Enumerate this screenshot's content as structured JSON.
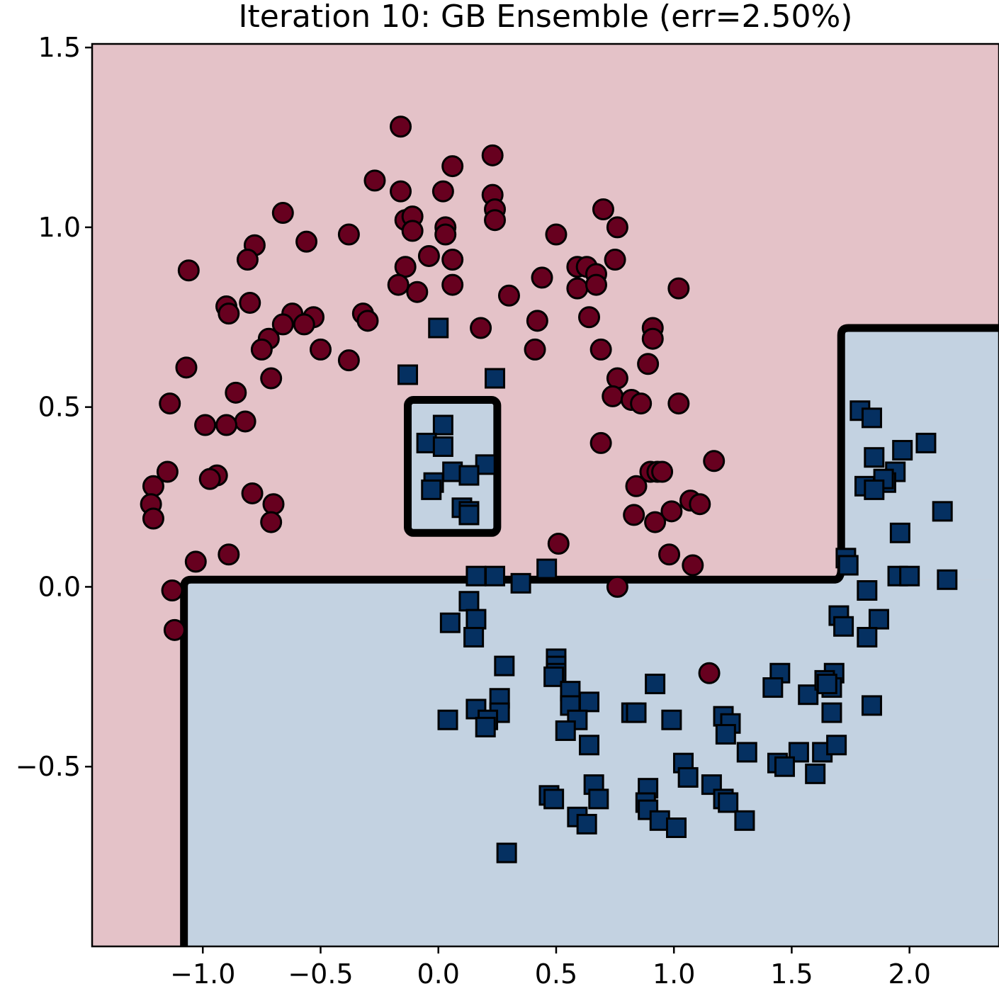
{
  "chart_data": {
    "type": "scatter",
    "title": "Iteration 10: GB Ensemble (err=2.50%)",
    "xlabel": "",
    "ylabel": "",
    "xlim": [
      -1.47,
      2.38
    ],
    "ylim": [
      -1.0,
      1.51
    ],
    "x_ticks": [
      -1.0,
      -0.5,
      0.0,
      0.5,
      1.0,
      1.5,
      2.0
    ],
    "x_tick_labels": [
      "−1.0",
      "−0.5",
      "0.0",
      "0.5",
      "1.0",
      "1.5",
      "2.0"
    ],
    "y_ticks": [
      -0.5,
      0.0,
      0.5,
      1.0,
      1.5
    ],
    "y_tick_labels": [
      "−0.5",
      "0.0",
      "0.5",
      "1.0",
      "1.5"
    ],
    "grid": false,
    "legend": "none",
    "colors": {
      "class0_marker": "#67001f",
      "class1_marker": "#053061",
      "class0_region": "#e4c2c8",
      "class1_region": "#c3d2e1",
      "boundary": "#000000"
    },
    "decision_regions": [
      {
        "class": 1,
        "x": [
          -1.08,
          2.38
        ],
        "y": [
          -1.0,
          0.02
        ],
        "note": ""
      },
      {
        "class": 1,
        "x": [
          1.71,
          2.38
        ],
        "y": [
          0.02,
          0.72
        ],
        "note": ""
      },
      {
        "class": 1,
        "x": [
          -0.13,
          0.25
        ],
        "y": [
          0.15,
          0.52
        ],
        "note": ""
      }
    ],
    "series": [
      {
        "marker": "circle",
        "points": [
          [
            -0.16,
            1.28
          ],
          [
            0.23,
            1.2
          ],
          [
            0.06,
            1.17
          ],
          [
            -0.27,
            1.13
          ],
          [
            -0.16,
            1.1
          ],
          [
            0.02,
            1.1
          ],
          [
            0.23,
            1.09
          ],
          [
            0.24,
            1.05
          ],
          [
            0.24,
            1.02
          ],
          [
            -0.66,
            1.04
          ],
          [
            0.7,
            1.05
          ],
          [
            -0.14,
            1.02
          ],
          [
            -0.11,
            1.03
          ],
          [
            0.03,
            1.0
          ],
          [
            0.03,
            0.98
          ],
          [
            -0.11,
            0.99
          ],
          [
            0.5,
            0.98
          ],
          [
            0.76,
            1.0
          ],
          [
            -0.38,
            0.98
          ],
          [
            -0.56,
            0.96
          ],
          [
            -0.78,
            0.95
          ],
          [
            -0.81,
            0.91
          ],
          [
            -0.04,
            0.92
          ],
          [
            0.06,
            0.91
          ],
          [
            0.75,
            0.91
          ],
          [
            0.59,
            0.89
          ],
          [
            0.63,
            0.89
          ],
          [
            0.67,
            0.87
          ],
          [
            -1.06,
            0.88
          ],
          [
            -0.14,
            0.89
          ],
          [
            0.44,
            0.86
          ],
          [
            0.59,
            0.83
          ],
          [
            0.67,
            0.84
          ],
          [
            -0.17,
            0.84
          ],
          [
            0.06,
            0.84
          ],
          [
            1.02,
            0.83
          ],
          [
            -0.09,
            0.82
          ],
          [
            0.3,
            0.81
          ],
          [
            -0.8,
            0.79
          ],
          [
            -0.9,
            0.78
          ],
          [
            -0.89,
            0.76
          ],
          [
            -0.62,
            0.76
          ],
          [
            -0.53,
            0.75
          ],
          [
            -0.32,
            0.76
          ],
          [
            -0.3,
            0.74
          ],
          [
            0.42,
            0.74
          ],
          [
            0.64,
            0.75
          ],
          [
            -0.66,
            0.73
          ],
          [
            -0.57,
            0.73
          ],
          [
            0.18,
            0.72
          ],
          [
            0.91,
            0.72
          ],
          [
            0.91,
            0.69
          ],
          [
            -0.72,
            0.69
          ],
          [
            -0.75,
            0.66
          ],
          [
            -0.5,
            0.66
          ],
          [
            0.41,
            0.66
          ],
          [
            0.69,
            0.66
          ],
          [
            -0.38,
            0.63
          ],
          [
            -1.07,
            0.61
          ],
          [
            0.89,
            0.62
          ],
          [
            -0.71,
            0.58
          ],
          [
            0.76,
            0.58
          ],
          [
            -0.86,
            0.54
          ],
          [
            0.74,
            0.53
          ],
          [
            0.82,
            0.52
          ],
          [
            0.86,
            0.51
          ],
          [
            1.02,
            0.51
          ],
          [
            -1.14,
            0.51
          ],
          [
            -0.82,
            0.46
          ],
          [
            -0.99,
            0.45
          ],
          [
            -0.9,
            0.45
          ],
          [
            0.69,
            0.4
          ],
          [
            1.17,
            0.35
          ],
          [
            -1.15,
            0.32
          ],
          [
            0.9,
            0.32
          ],
          [
            0.93,
            0.32
          ],
          [
            0.95,
            0.32
          ],
          [
            -0.94,
            0.31
          ],
          [
            -0.97,
            0.3
          ],
          [
            -1.21,
            0.28
          ],
          [
            0.84,
            0.28
          ],
          [
            -0.79,
            0.26
          ],
          [
            -1.22,
            0.23
          ],
          [
            -0.7,
            0.23
          ],
          [
            1.07,
            0.24
          ],
          [
            1.11,
            0.23
          ],
          [
            0.99,
            0.21
          ],
          [
            0.83,
            0.2
          ],
          [
            -1.21,
            0.19
          ],
          [
            -0.71,
            0.18
          ],
          [
            0.92,
            0.18
          ],
          [
            0.51,
            0.12
          ],
          [
            -1.03,
            0.07
          ],
          [
            0.98,
            0.09
          ],
          [
            -0.89,
            0.09
          ],
          [
            1.08,
            0.06
          ],
          [
            0.76,
            0.0
          ],
          [
            -1.13,
            -0.01
          ],
          [
            -1.12,
            -0.12
          ],
          [
            1.15,
            -0.24
          ]
        ]
      },
      {
        "marker": "square",
        "points": [
          [
            0.0,
            0.72
          ],
          [
            -0.13,
            0.59
          ],
          [
            0.24,
            0.58
          ],
          [
            0.02,
            0.45
          ],
          [
            -0.05,
            0.4
          ],
          [
            0.02,
            0.39
          ],
          [
            0.2,
            0.34
          ],
          [
            0.06,
            0.32
          ],
          [
            0.13,
            0.31
          ],
          [
            -0.02,
            0.29
          ],
          [
            -0.03,
            0.27
          ],
          [
            0.1,
            0.22
          ],
          [
            0.13,
            0.21
          ],
          [
            0.13,
            0.2
          ],
          [
            0.16,
            0.03
          ],
          [
            0.24,
            0.03
          ],
          [
            0.46,
            0.05
          ],
          [
            0.35,
            0.01
          ],
          [
            0.13,
            -0.04
          ],
          [
            0.05,
            -0.1
          ],
          [
            0.16,
            -0.09
          ],
          [
            0.15,
            -0.14
          ],
          [
            0.28,
            -0.22
          ],
          [
            0.5,
            -0.2
          ],
          [
            0.5,
            -0.22
          ],
          [
            0.5,
            -0.24
          ],
          [
            0.49,
            -0.25
          ],
          [
            0.56,
            -0.29
          ],
          [
            0.56,
            -0.33
          ],
          [
            0.64,
            -0.32
          ],
          [
            0.16,
            -0.34
          ],
          [
            0.26,
            -0.31
          ],
          [
            0.26,
            -0.35
          ],
          [
            0.21,
            -0.37
          ],
          [
            0.2,
            -0.39
          ],
          [
            0.04,
            -0.37
          ],
          [
            0.59,
            -0.37
          ],
          [
            0.54,
            -0.4
          ],
          [
            0.64,
            -0.44
          ],
          [
            0.82,
            -0.35
          ],
          [
            0.84,
            -0.35
          ],
          [
            0.92,
            -0.27
          ],
          [
            0.99,
            -0.37
          ],
          [
            1.21,
            -0.36
          ],
          [
            1.24,
            -0.38
          ],
          [
            1.22,
            -0.41
          ],
          [
            1.31,
            -0.46
          ],
          [
            1.04,
            -0.49
          ],
          [
            1.06,
            -0.53
          ],
          [
            1.16,
            -0.55
          ],
          [
            1.45,
            -0.24
          ],
          [
            1.42,
            -0.28
          ],
          [
            1.57,
            -0.3
          ],
          [
            1.68,
            -0.24
          ],
          [
            1.64,
            -0.26
          ],
          [
            1.67,
            -0.28
          ],
          [
            1.65,
            -0.27
          ],
          [
            1.84,
            -0.33
          ],
          [
            1.67,
            -0.35
          ],
          [
            1.53,
            -0.46
          ],
          [
            1.63,
            -0.46
          ],
          [
            1.69,
            -0.44
          ],
          [
            1.44,
            -0.49
          ],
          [
            1.47,
            -0.5
          ],
          [
            1.6,
            -0.52
          ],
          [
            0.47,
            -0.58
          ],
          [
            0.49,
            -0.59
          ],
          [
            0.89,
            -0.56
          ],
          [
            0.88,
            -0.6
          ],
          [
            0.89,
            -0.62
          ],
          [
            0.66,
            -0.55
          ],
          [
            0.68,
            -0.59
          ],
          [
            0.59,
            -0.64
          ],
          [
            0.63,
            -0.66
          ],
          [
            0.94,
            -0.65
          ],
          [
            1.01,
            -0.67
          ],
          [
            1.21,
            -0.59
          ],
          [
            1.23,
            -0.6
          ],
          [
            1.3,
            -0.65
          ],
          [
            0.29,
            -0.74
          ],
          [
            1.79,
            0.49
          ],
          [
            1.84,
            0.47
          ],
          [
            1.85,
            0.36
          ],
          [
            1.97,
            0.38
          ],
          [
            2.07,
            0.4
          ],
          [
            1.94,
            0.32
          ],
          [
            1.9,
            0.29
          ],
          [
            1.89,
            0.3
          ],
          [
            1.81,
            0.28
          ],
          [
            1.85,
            0.27
          ],
          [
            2.14,
            0.21
          ],
          [
            1.96,
            0.15
          ],
          [
            1.73,
            0.08
          ],
          [
            1.74,
            0.06
          ],
          [
            1.82,
            -0.01
          ],
          [
            1.95,
            0.03
          ],
          [
            2.0,
            0.03
          ],
          [
            2.16,
            0.02
          ],
          [
            1.7,
            -0.08
          ],
          [
            1.72,
            -0.11
          ],
          [
            1.87,
            -0.09
          ],
          [
            1.82,
            -0.14
          ]
        ]
      }
    ]
  }
}
